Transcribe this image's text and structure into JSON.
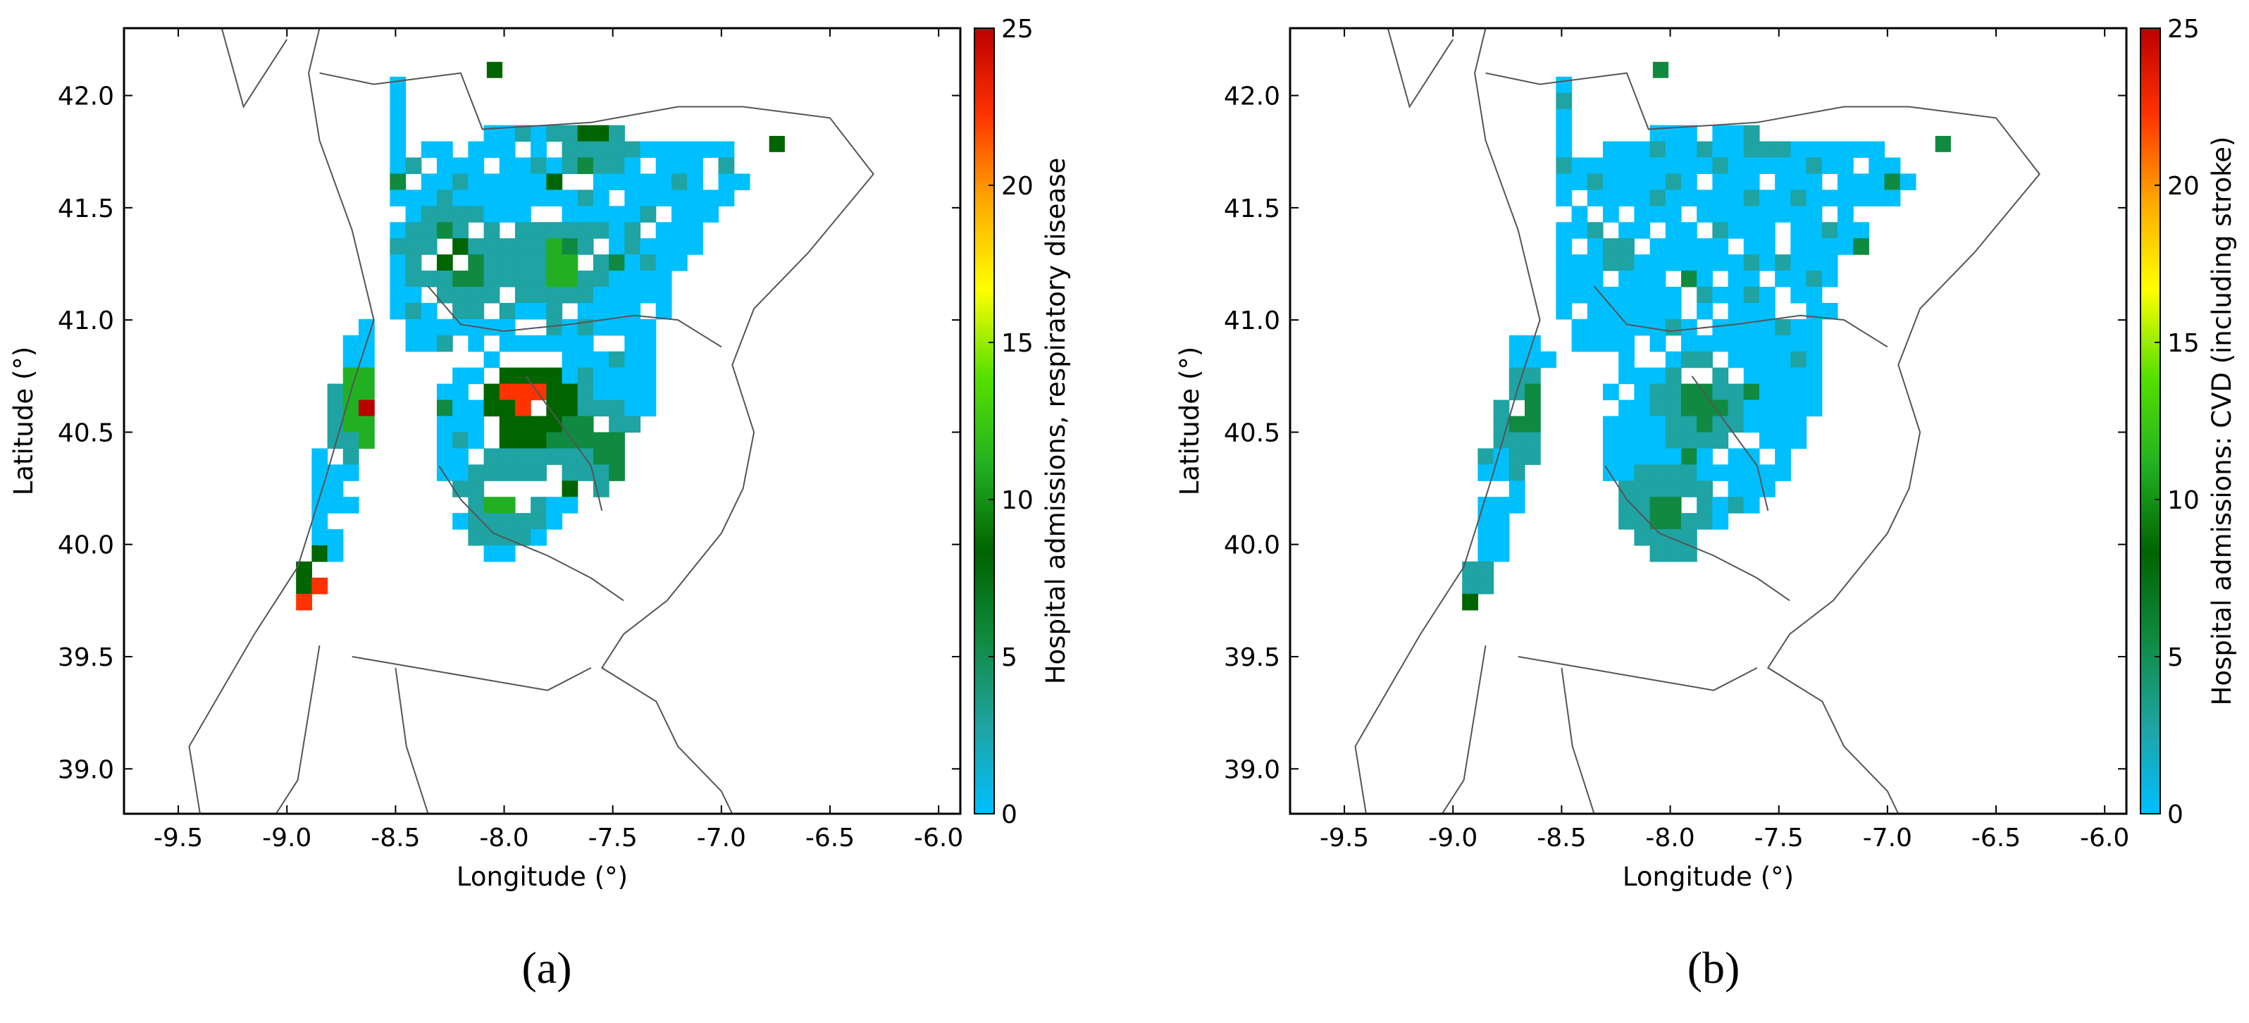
{
  "figure": {
    "panels": [
      {
        "label": "(a)"
      },
      {
        "label": "(b)"
      }
    ]
  },
  "chart_data": [
    {
      "type": "heatmap",
      "panel": "(a)",
      "xlabel": "Longitude (°)",
      "ylabel": "Latitude (°)",
      "xlim": [
        -9.75,
        -5.9
      ],
      "ylim": [
        38.8,
        42.3
      ],
      "xticks": [
        -9.5,
        -9.0,
        -8.5,
        -8.0,
        -7.5,
        -7.0,
        -6.5,
        -6.0
      ],
      "xtick_labels": [
        "-9.5",
        "-9.0",
        "-8.5",
        "-8.0",
        "-7.5",
        "-7.0",
        "-6.5",
        "-6.0"
      ],
      "yticks": [
        39.0,
        39.5,
        40.0,
        40.5,
        41.0,
        41.5,
        42.0
      ],
      "ytick_labels": [
        "39.0",
        "39.5",
        "40.0",
        "40.5",
        "41.0",
        "41.5",
        "42.0"
      ],
      "colorbar": {
        "label": "Hospital admissions, respiratory disease",
        "range": [
          0,
          25
        ],
        "ticks": [
          0,
          5,
          10,
          15,
          20,
          25
        ],
        "tick_labels": [
          "0",
          "5",
          "10",
          "15",
          "20",
          "25"
        ],
        "colors": [
          "#00bfff",
          "#1fa3a3",
          "#108a40",
          "#006400",
          "#22b022",
          "#55e000",
          "#ffff00",
          "#ffaa00",
          "#ff3300",
          "#bb0000"
        ]
      },
      "grid": false,
      "hotspots": [
        {
          "lon": -8.55,
          "lat": 40.62,
          "value": 24
        },
        {
          "lon": -7.9,
          "lat": 40.66,
          "value": 21
        },
        {
          "lon": -8.85,
          "lat": 39.74,
          "value": 22
        },
        {
          "lon": -8.25,
          "lat": 41.3,
          "value": 8
        },
        {
          "lon": -8.15,
          "lat": 41.2,
          "value": 7
        },
        {
          "lon": -7.75,
          "lat": 41.25,
          "value": 10
        },
        {
          "lon": -8.65,
          "lat": 40.55,
          "value": 9
        },
        {
          "lon": -7.6,
          "lat": 41.85,
          "value": 8
        },
        {
          "lon": -6.75,
          "lat": 41.82,
          "value": 7
        },
        {
          "lon": -8.0,
          "lat": 40.2,
          "value": 11
        },
        {
          "lon": -7.7,
          "lat": 40.5,
          "value": 6
        },
        {
          "lon": -7.5,
          "lat": 40.4,
          "value": 6
        }
      ]
    },
    {
      "type": "heatmap",
      "panel": "(b)",
      "xlabel": "Longitude (°)",
      "ylabel": "Latitude (°)",
      "xlim": [
        -9.75,
        -5.9
      ],
      "ylim": [
        38.8,
        42.3
      ],
      "xticks": [
        -9.5,
        -9.0,
        -8.5,
        -8.0,
        -7.5,
        -7.0,
        -6.5,
        -6.0
      ],
      "xtick_labels": [
        "-9.5",
        "-9.0",
        "-8.5",
        "-8.0",
        "-7.5",
        "-7.0",
        "-6.5",
        "-6.0"
      ],
      "yticks": [
        39.0,
        39.5,
        40.0,
        40.5,
        41.0,
        41.5,
        42.0
      ],
      "ytick_labels": [
        "39.0",
        "39.5",
        "40.0",
        "40.5",
        "41.0",
        "41.5",
        "42.0"
      ],
      "colorbar": {
        "label": "Hospital admissions: CVD (including stroke)",
        "range": [
          0,
          25
        ],
        "ticks": [
          0,
          5,
          10,
          15,
          20,
          25
        ],
        "tick_labels": [
          "0",
          "5",
          "10",
          "15",
          "20",
          "25"
        ],
        "colors": [
          "#00bfff",
          "#1fa3a3",
          "#108a40",
          "#006400",
          "#22b022",
          "#55e000",
          "#ffff00",
          "#ffaa00",
          "#ff3300",
          "#bb0000"
        ]
      },
      "grid": false,
      "hotspots": [
        {
          "lon": -8.25,
          "lat": 41.3,
          "value": 6
        },
        {
          "lon": -7.85,
          "lat": 40.62,
          "value": 9
        },
        {
          "lon": -8.65,
          "lat": 40.6,
          "value": 7
        },
        {
          "lon": -7.55,
          "lat": 41.8,
          "value": 6
        },
        {
          "lon": -6.75,
          "lat": 41.78,
          "value": 6
        },
        {
          "lon": -8.85,
          "lat": 39.72,
          "value": 12
        },
        {
          "lon": -8.0,
          "lat": 40.15,
          "value": 8
        }
      ]
    }
  ]
}
